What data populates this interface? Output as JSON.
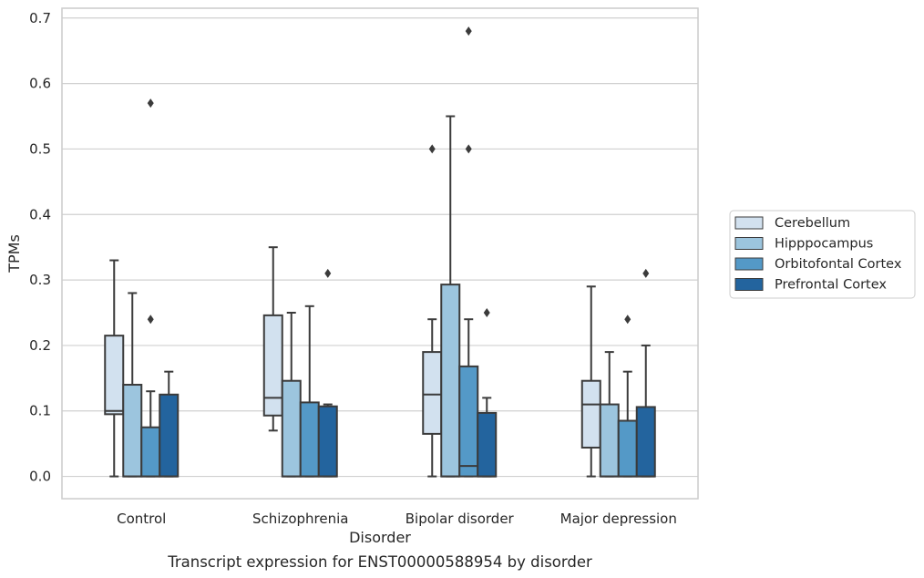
{
  "chart_data": {
    "type": "box",
    "title": "",
    "caption": "Transcript expression for ENST00000588954 by disorder",
    "xlabel": "Disorder",
    "ylabel": "TPMs",
    "ylim": [
      -0.034,
      0.715
    ],
    "yticks": [
      0.0,
      0.1,
      0.2,
      0.3,
      0.4,
      0.5,
      0.6,
      0.7
    ],
    "grid": "horizontal",
    "legend_position": "right",
    "categories": [
      "Control",
      "Schizophrenia",
      "Bipolar disorder",
      "Major depression"
    ],
    "series": [
      {
        "name": "Cerebellum",
        "color": "#d2e1ef",
        "boxes": [
          {
            "whisker_low": 0.0,
            "q1": 0.095,
            "median": 0.1,
            "q3": 0.215,
            "whisker_high": 0.33,
            "outliers": []
          },
          {
            "whisker_low": 0.07,
            "q1": 0.093,
            "median": 0.12,
            "q3": 0.246,
            "whisker_high": 0.35,
            "outliers": []
          },
          {
            "whisker_low": 0.0,
            "q1": 0.065,
            "median": 0.125,
            "q3": 0.19,
            "whisker_high": 0.24,
            "outliers": [
              0.5
            ]
          },
          {
            "whisker_low": 0.0,
            "q1": 0.044,
            "median": 0.11,
            "q3": 0.146,
            "whisker_high": 0.29,
            "outliers": []
          }
        ]
      },
      {
        "name": "Hipppocampus",
        "color": "#9cc5de",
        "boxes": [
          {
            "whisker_low": 0.0,
            "q1": 0.0,
            "median": 0.0,
            "q3": 0.14,
            "whisker_high": 0.28,
            "outliers": []
          },
          {
            "whisker_low": 0.0,
            "q1": 0.0,
            "median": 0.0,
            "q3": 0.146,
            "whisker_high": 0.25,
            "outliers": []
          },
          {
            "whisker_low": 0.0,
            "q1": 0.0,
            "median": 0.0,
            "q3": 0.293,
            "whisker_high": 0.55,
            "outliers": []
          },
          {
            "whisker_low": 0.0,
            "q1": 0.0,
            "median": 0.0,
            "q3": 0.11,
            "whisker_high": 0.19,
            "outliers": []
          }
        ]
      },
      {
        "name": "Orbitofontal Cortex",
        "color": "#5499c7",
        "boxes": [
          {
            "whisker_low": 0.0,
            "q1": 0.0,
            "median": 0.0,
            "q3": 0.075,
            "whisker_high": 0.13,
            "outliers": [
              0.24,
              0.57
            ]
          },
          {
            "whisker_low": 0.0,
            "q1": 0.0,
            "median": 0.0,
            "q3": 0.113,
            "whisker_high": 0.26,
            "outliers": []
          },
          {
            "whisker_low": 0.0,
            "q1": 0.0,
            "median": 0.016,
            "q3": 0.168,
            "whisker_high": 0.24,
            "outliers": [
              0.5,
              0.68
            ]
          },
          {
            "whisker_low": 0.0,
            "q1": 0.0,
            "median": 0.0,
            "q3": 0.085,
            "whisker_high": 0.16,
            "outliers": [
              0.24
            ]
          }
        ]
      },
      {
        "name": "Prefrontal Cortex",
        "color": "#23649e",
        "boxes": [
          {
            "whisker_low": 0.0,
            "q1": 0.0,
            "median": 0.0,
            "q3": 0.125,
            "whisker_high": 0.16,
            "outliers": []
          },
          {
            "whisker_low": 0.0,
            "q1": 0.0,
            "median": 0.0,
            "q3": 0.107,
            "whisker_high": 0.11,
            "outliers": [
              0.31
            ]
          },
          {
            "whisker_low": 0.0,
            "q1": 0.0,
            "median": 0.0,
            "q3": 0.097,
            "whisker_high": 0.12,
            "outliers": [
              0.25
            ]
          },
          {
            "whisker_low": 0.0,
            "q1": 0.0,
            "median": 0.0,
            "q3": 0.106,
            "whisker_high": 0.2,
            "outliers": [
              0.31
            ]
          }
        ]
      }
    ]
  }
}
